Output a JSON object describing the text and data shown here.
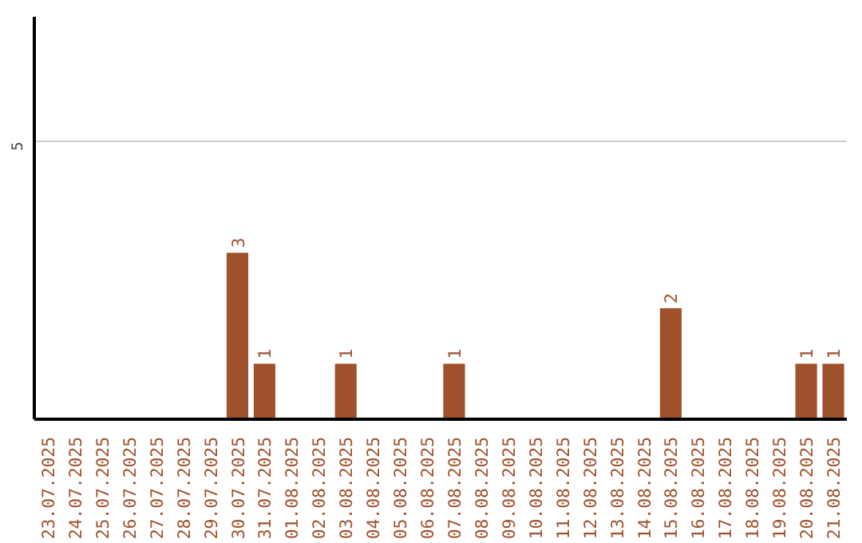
{
  "chart_data": {
    "type": "bar",
    "categories": [
      "23.07.2025",
      "24.07.2025",
      "25.07.2025",
      "26.07.2025",
      "27.07.2025",
      "28.07.2025",
      "29.07.2025",
      "30.07.2025",
      "31.07.2025",
      "01.08.2025",
      "02.08.2025",
      "03.08.2025",
      "04.08.2025",
      "05.08.2025",
      "06.08.2025",
      "07.08.2025",
      "08.08.2025",
      "09.08.2025",
      "10.08.2025",
      "11.08.2025",
      "12.08.2025",
      "13.08.2025",
      "14.08.2025",
      "15.08.2025",
      "16.08.2025",
      "17.08.2025",
      "18.08.2025",
      "19.08.2025",
      "20.08.2025",
      "21.08.2025"
    ],
    "values": [
      0,
      0,
      0,
      0,
      0,
      0,
      0,
      3,
      1,
      0,
      0,
      1,
      0,
      0,
      0,
      1,
      0,
      0,
      0,
      0,
      0,
      0,
      0,
      2,
      0,
      0,
      0,
      0,
      1,
      1
    ],
    "value_labels": [
      null,
      null,
      null,
      null,
      null,
      null,
      null,
      "3",
      "1",
      null,
      null,
      "1",
      null,
      null,
      null,
      "1",
      null,
      null,
      null,
      null,
      null,
      null,
      null,
      "2",
      null,
      null,
      null,
      null,
      "1",
      "1"
    ],
    "color": "#a0522d",
    "ylim": [
      0,
      7.25
    ],
    "yticks": [
      5
    ],
    "grid": "y"
  }
}
